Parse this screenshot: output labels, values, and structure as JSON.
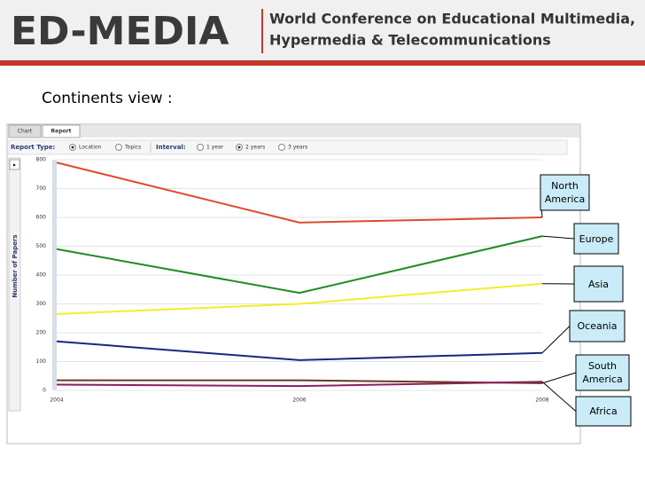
{
  "header": {
    "logo": "ED-MEDIA",
    "title_line1": "World Conference on Educational Multimedia,",
    "title_line2": "Hypermedia & Telecommunications"
  },
  "view_title": "Continents view :",
  "tabs": [
    "Chart",
    "Report"
  ],
  "toolbar": {
    "report_type_label": "Report Type:",
    "report_type_options": [
      "Location",
      "Topics"
    ],
    "interval_label": "Interval:",
    "interval_options": [
      "1 year",
      "2 years",
      "3 years"
    ]
  },
  "chart_data": {
    "type": "line",
    "y_label": "Number of Papers",
    "categories": [
      "2004",
      "2006",
      "2008"
    ],
    "ylim": [
      0,
      800
    ],
    "yticks": [
      0,
      100,
      200,
      300,
      400,
      500,
      600,
      700,
      800
    ],
    "grid": true,
    "series": [
      {
        "name": "North America",
        "color": "#e04a2c",
        "values": [
          790,
          582,
          600
        ]
      },
      {
        "name": "Europe",
        "color": "#1e8c1e",
        "values": [
          490,
          338,
          535
        ]
      },
      {
        "name": "Asia",
        "color": "#f2ee2a",
        "values": [
          265,
          300,
          370
        ]
      },
      {
        "name": "Oceania",
        "color": "#1c2580",
        "values": [
          170,
          105,
          130
        ]
      },
      {
        "name": "South America",
        "color": "#6b3a1a",
        "values": [
          35,
          35,
          25
        ]
      },
      {
        "name": "Africa",
        "color": "#8b1f5e",
        "values": [
          20,
          15,
          30
        ]
      }
    ]
  }
}
